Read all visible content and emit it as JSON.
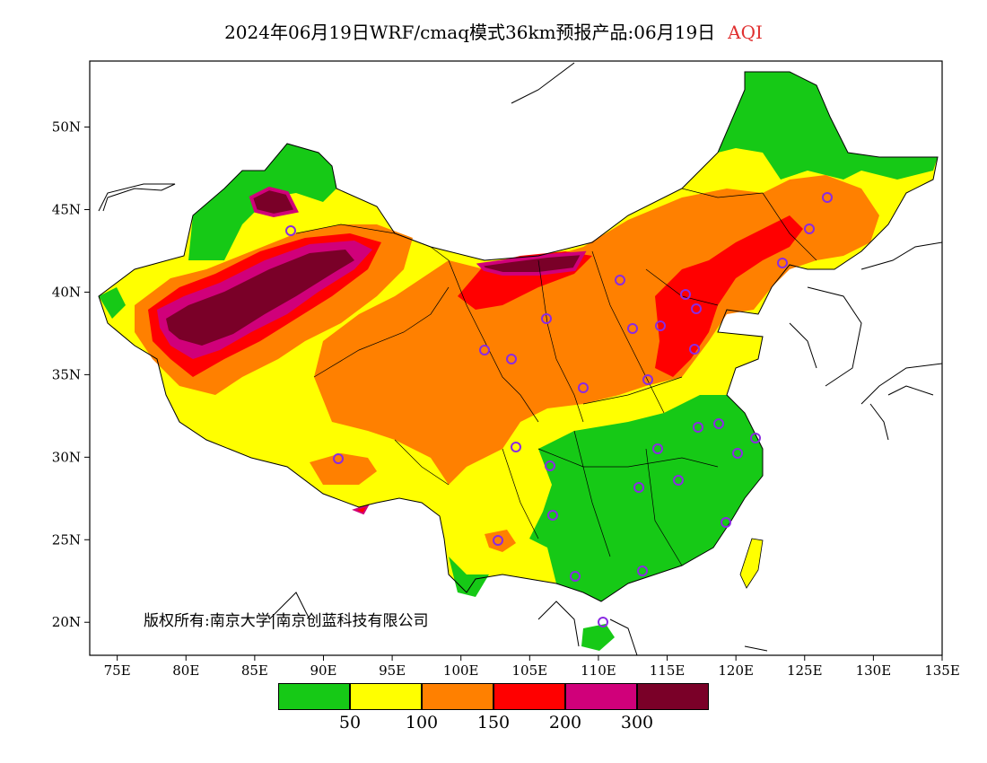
{
  "title": {
    "main": "2024年06月19日WRF/cmaq模式36km预报产品:06月19日",
    "variable": "AQI",
    "variable_color": "#e03030"
  },
  "copyright": "版权所有:南京大学|南京创蓝科技有限公司",
  "map": {
    "lon_range": [
      73,
      135
    ],
    "lat_range": [
      18,
      54
    ],
    "x_ticks": [
      "75E",
      "80E",
      "85E",
      "90E",
      "95E",
      "100E",
      "105E",
      "110E",
      "115E",
      "120E",
      "125E",
      "130E",
      "135E"
    ],
    "y_ticks": [
      "20N",
      "25N",
      "30N",
      "35N",
      "40N",
      "45N",
      "50N"
    ]
  },
  "legend": {
    "colors": [
      "#16c916",
      "#ffff00",
      "#ff8000",
      "#ff0000",
      "#d0007a",
      "#7a0028"
    ],
    "labels": [
      "50",
      "100",
      "150",
      "200",
      "300"
    ]
  },
  "station_marker_color": "#8a2be2"
}
